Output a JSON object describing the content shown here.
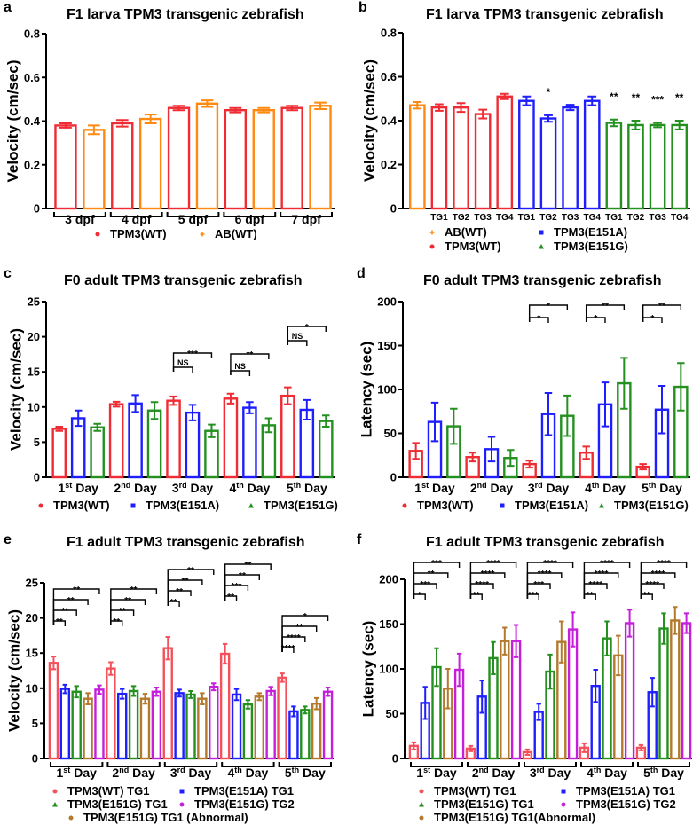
{
  "colors": {
    "wt_red": "#ef2b33",
    "wt_light": "#f4515a",
    "ab_orange": "#ff8a12",
    "e151a_blue": "#1e1eff",
    "e151g_green": "#23901f",
    "tg2_magenta": "#c61fdc",
    "abn_brown": "#b3792d"
  },
  "chart_data": [
    {
      "id": "a",
      "letter": "a",
      "type": "bar",
      "title": "F1 larva TPM3 transgenic zebrafish",
      "ylabel": "Velocity (cm/sec)",
      "xlabel": "",
      "ylim": [
        0,
        0.8
      ],
      "yticks": [
        "0",
        "0.2",
        "0.4",
        "0.6",
        "0.8"
      ],
      "ytick_values": [
        0,
        0.2,
        0.4,
        0.6,
        0.8
      ],
      "categories": [
        "3 dpf",
        "4 dpf",
        "5 dpf",
        "6 dpf",
        "7 dpf"
      ],
      "series": [
        {
          "name": "TPM3(WT)",
          "color": "#ef2b33",
          "marker": "circle",
          "values": [
            0.38,
            0.39,
            0.46,
            0.45,
            0.46
          ],
          "sem": [
            0.01,
            0.015,
            0.01,
            0.01,
            0.01
          ]
        },
        {
          "name": "AB(WT)",
          "color": "#ff8a12",
          "marker": "plus",
          "values": [
            0.36,
            0.41,
            0.48,
            0.45,
            0.47
          ],
          "sem": [
            0.02,
            0.02,
            0.015,
            0.01,
            0.015
          ]
        }
      ],
      "brackets": [],
      "annotations": []
    },
    {
      "id": "b",
      "letter": "b",
      "type": "bar",
      "title": "F1 larva TPM3 transgenic zebrafish",
      "ylabel": "Velocity (cm/sec)",
      "xlabel": "",
      "ylim": [
        0,
        0.8
      ],
      "yticks": [
        "0",
        "0.2",
        "0.4",
        "0.6",
        "0.8"
      ],
      "ytick_values": [
        0,
        0.2,
        0.4,
        0.6,
        0.8
      ],
      "categories": [
        "",
        "TG1",
        "TG2",
        "TG3",
        "TG4",
        "TG1",
        "TG2",
        "TG3",
        "TG4",
        "TG1",
        "TG2",
        "TG3",
        "TG4"
      ],
      "series": [
        {
          "name": "AB(WT)",
          "color": "#ff8a12",
          "marker": "plus",
          "values": [
            0.47,
            null,
            null,
            null,
            null,
            null,
            null,
            null,
            null,
            null,
            null,
            null,
            null
          ],
          "sem": [
            0.015
          ]
        },
        {
          "name": "TPM3(WT)",
          "color": "#ef2b33",
          "marker": "circle",
          "values": [
            null,
            0.46,
            0.46,
            0.43,
            0.51,
            null,
            null,
            null,
            null,
            null,
            null,
            null,
            null
          ],
          "sem": [
            null,
            0.015,
            0.02,
            0.02,
            0.012
          ]
        },
        {
          "name": "TPM3(E151A)",
          "color": "#1e1eff",
          "marker": "square",
          "values": [
            null,
            null,
            null,
            null,
            null,
            0.49,
            0.41,
            0.46,
            0.49,
            null,
            null,
            null,
            null
          ],
          "sem": [
            null,
            null,
            null,
            null,
            null,
            0.02,
            0.015,
            0.012,
            0.02
          ]
        },
        {
          "name": "TPM3(E151G)",
          "color": "#23901f",
          "marker": "triangle",
          "values": [
            null,
            null,
            null,
            null,
            null,
            null,
            null,
            null,
            null,
            0.39,
            0.38,
            0.38,
            0.38
          ],
          "sem": [
            null,
            null,
            null,
            null,
            null,
            null,
            null,
            null,
            null,
            0.015,
            0.02,
            0.01,
            0.02
          ]
        }
      ],
      "annotations": [
        {
          "category": 6,
          "label": "*"
        },
        {
          "category": 9,
          "label": "**"
        },
        {
          "category": 10,
          "label": "**"
        },
        {
          "category": 11,
          "label": "***"
        },
        {
          "category": 12,
          "label": "**"
        }
      ],
      "brackets": []
    },
    {
      "id": "c",
      "letter": "c",
      "type": "bar",
      "title": "F0 adult TPM3 transgenic zebrafish",
      "ylabel": "Velocity (cm/sec)",
      "xlabel": "",
      "ylim": [
        0,
        25
      ],
      "yticks": [
        "0",
        "5",
        "10",
        "15",
        "20",
        "25"
      ],
      "ytick_values": [
        0,
        5,
        10,
        15,
        20,
        25
      ],
      "categories": [
        "1st Day",
        "2nd Day",
        "3rd Day",
        "4th Day",
        "5th Day"
      ],
      "series": [
        {
          "name": "TPM3(WT)",
          "color": "#ef2b33",
          "marker": "circle",
          "values": [
            6.9,
            10.4,
            10.9,
            11.2,
            11.6
          ],
          "sem": [
            0.3,
            0.35,
            0.6,
            0.7,
            1.2
          ]
        },
        {
          "name": "TPM3(E151A)",
          "color": "#1e1eff",
          "marker": "square",
          "values": [
            8.4,
            10.5,
            9.2,
            9.9,
            9.6
          ],
          "sem": [
            1.1,
            1.2,
            1.1,
            0.8,
            1.4
          ]
        },
        {
          "name": "TPM3(E151G)",
          "color": "#23901f",
          "marker": "triangle",
          "values": [
            7.1,
            9.5,
            6.6,
            7.4,
            8.0
          ],
          "sem": [
            0.5,
            1.2,
            0.9,
            1.0,
            0.8
          ]
        }
      ],
      "brackets": [
        {
          "group": 2,
          "to": 1,
          "level": 0,
          "label": "NS"
        },
        {
          "group": 2,
          "to": 2,
          "level": 1,
          "label": "***"
        },
        {
          "group": 3,
          "to": 1,
          "level": 0,
          "label": "NS"
        },
        {
          "group": 3,
          "to": 2,
          "level": 1,
          "label": "**"
        },
        {
          "group": 4,
          "to": 1,
          "level": 0,
          "label": "NS"
        },
        {
          "group": 4,
          "to": 2,
          "level": 1,
          "label": "*"
        }
      ],
      "annotations": []
    },
    {
      "id": "d",
      "letter": "d",
      "type": "bar",
      "title": "F0 adult TPM3 transgenic zebrafish",
      "ylabel": "Latency (sec)",
      "xlabel": "",
      "ylim": [
        0,
        200
      ],
      "yticks": [
        "0",
        "50",
        "100",
        "150",
        "200"
      ],
      "ytick_values": [
        0,
        50,
        100,
        150,
        200
      ],
      "categories": [
        "1st Day",
        "2nd Day",
        "3rd Day",
        "4th Day",
        "5th Day"
      ],
      "series": [
        {
          "name": "TPM3(WT)",
          "color": "#ef2b33",
          "marker": "circle",
          "values": [
            30,
            23,
            15,
            28,
            12
          ],
          "sem": [
            9,
            5,
            4,
            7,
            3
          ]
        },
        {
          "name": "TPM3(E151A)",
          "color": "#1e1eff",
          "marker": "square",
          "values": [
            63,
            32,
            72,
            83,
            77
          ],
          "sem": [
            22,
            14,
            24,
            25,
            27
          ]
        },
        {
          "name": "TPM3(E151G)",
          "color": "#23901f",
          "marker": "triangle",
          "values": [
            58,
            22,
            70,
            107,
            103
          ],
          "sem": [
            20,
            9,
            23,
            29,
            27
          ]
        }
      ],
      "brackets": [
        {
          "group": 2,
          "to": 1,
          "level": 0,
          "label": "*"
        },
        {
          "group": 2,
          "to": 2,
          "level": 1,
          "label": "*"
        },
        {
          "group": 3,
          "to": 1,
          "level": 0,
          "label": "*"
        },
        {
          "group": 3,
          "to": 2,
          "level": 1,
          "label": "**"
        },
        {
          "group": 4,
          "to": 1,
          "level": 0,
          "label": "*"
        },
        {
          "group": 4,
          "to": 2,
          "level": 1,
          "label": "**"
        }
      ],
      "annotations": []
    },
    {
      "id": "e",
      "letter": "e",
      "type": "bar",
      "title": "F1 adult TPM3 transgenic zebrafish",
      "ylabel": "Velocity (cm/sec)",
      "xlabel": "",
      "ylim": [
        0,
        25
      ],
      "yticks": [
        "0",
        "5",
        "10",
        "15",
        "20",
        "25"
      ],
      "ytick_values": [
        0,
        5,
        10,
        15,
        20,
        25
      ],
      "categories": [
        "1st Day",
        "2nd Day",
        "3rd Day",
        "4th Day",
        "5th Day"
      ],
      "series": [
        {
          "name": "TPM3(WT) TG1",
          "color": "#f4515a",
          "marker": "circle",
          "values": [
            13.6,
            12.8,
            15.7,
            14.9,
            11.5
          ],
          "sem": [
            0.9,
            0.9,
            1.6,
            1.4,
            0.6
          ]
        },
        {
          "name": "TPM3(E151A) TG1",
          "color": "#1e1eff",
          "marker": "square",
          "values": [
            9.9,
            9.2,
            9.3,
            9.1,
            6.7
          ],
          "sem": [
            0.6,
            0.7,
            0.5,
            0.8,
            0.7
          ]
        },
        {
          "name": "TPM3(E151G) TG1",
          "color": "#23901f",
          "marker": "triangle",
          "values": [
            9.5,
            9.6,
            9.1,
            7.7,
            6.9
          ],
          "sem": [
            0.8,
            0.7,
            0.5,
            0.6,
            0.5
          ]
        },
        {
          "name": "TPM3(E151G) TG1 (Abnormal)",
          "color": "#b3792d",
          "marker": "circle",
          "values": [
            8.5,
            8.5,
            8.5,
            8.8,
            7.8
          ],
          "sem": [
            0.8,
            0.7,
            0.8,
            0.5,
            0.8
          ]
        },
        {
          "name": "TPM3(E151G) TG2",
          "color": "#c61fdc",
          "marker": "circle",
          "values": [
            9.8,
            9.5,
            10.2,
            9.6,
            9.5
          ],
          "sem": [
            0.6,
            0.6,
            0.5,
            0.6,
            0.6
          ]
        }
      ],
      "legend_order": [
        0,
        1,
        2,
        4,
        3
      ],
      "brackets": [
        {
          "group": 0,
          "to": 1,
          "level": 0,
          "label": "**"
        },
        {
          "group": 0,
          "to": 2,
          "level": 1,
          "label": "**"
        },
        {
          "group": 0,
          "to": 3,
          "level": 2,
          "label": "**"
        },
        {
          "group": 0,
          "to": 4,
          "level": 3,
          "label": "**"
        },
        {
          "group": 1,
          "to": 1,
          "level": 0,
          "label": "**"
        },
        {
          "group": 1,
          "to": 2,
          "level": 1,
          "label": "**"
        },
        {
          "group": 1,
          "to": 3,
          "level": 2,
          "label": "**"
        },
        {
          "group": 1,
          "to": 4,
          "level": 3,
          "label": "**"
        },
        {
          "group": 2,
          "to": 1,
          "level": 0,
          "label": "**"
        },
        {
          "group": 2,
          "to": 2,
          "level": 1,
          "label": "**"
        },
        {
          "group": 2,
          "to": 3,
          "level": 2,
          "label": "**"
        },
        {
          "group": 2,
          "to": 4,
          "level": 3,
          "label": "**"
        },
        {
          "group": 3,
          "to": 1,
          "level": 0,
          "label": "**"
        },
        {
          "group": 3,
          "to": 2,
          "level": 1,
          "label": "***"
        },
        {
          "group": 3,
          "to": 3,
          "level": 2,
          "label": "**"
        },
        {
          "group": 3,
          "to": 4,
          "level": 3,
          "label": "**"
        },
        {
          "group": 4,
          "to": 1,
          "level": 0,
          "label": "****"
        },
        {
          "group": 4,
          "to": 2,
          "level": 1,
          "label": "****"
        },
        {
          "group": 4,
          "to": 3,
          "level": 2,
          "label": "**"
        },
        {
          "group": 4,
          "to": 4,
          "level": 3,
          "label": "*"
        }
      ],
      "annotations": []
    },
    {
      "id": "f",
      "letter": "f",
      "type": "bar",
      "title": "F1 adult TPM3 transgenic zebrafish",
      "ylabel": "Latency (sec)",
      "xlabel": "",
      "ylim": [
        0,
        200
      ],
      "yticks": [
        "0",
        "50",
        "100",
        "150",
        "200"
      ],
      "ytick_values": [
        0,
        50,
        100,
        150,
        200
      ],
      "categories": [
        "1st Day",
        "2nd Day",
        "3rd Day",
        "4th Day",
        "5th Day"
      ],
      "series": [
        {
          "name": "TPM3(WT) TG1",
          "color": "#f4515a",
          "marker": "circle",
          "values": [
            14,
            11,
            7,
            12,
            12
          ],
          "sem": [
            4,
            3,
            3,
            5,
            3
          ]
        },
        {
          "name": "TPM3(E151A) TG1",
          "color": "#1e1eff",
          "marker": "square",
          "values": [
            62,
            69,
            52,
            81,
            74
          ],
          "sem": [
            18,
            18,
            9,
            18,
            16
          ]
        },
        {
          "name": "TPM3(E151G) TG1",
          "color": "#23901f",
          "marker": "triangle",
          "values": [
            102,
            112,
            97,
            134,
            145
          ],
          "sem": [
            21,
            18,
            19,
            19,
            17
          ]
        },
        {
          "name": "TPM3(E151G) TG1(Abnormal)",
          "color": "#b3792d",
          "marker": "circle",
          "values": [
            78,
            131,
            130,
            115,
            154
          ],
          "sem": [
            22,
            15,
            23,
            22,
            15
          ]
        },
        {
          "name": "TPM3(E151G) TG2",
          "color": "#c61fdc",
          "marker": "circle",
          "values": [
            99,
            131,
            144,
            151,
            151
          ],
          "sem": [
            18,
            18,
            19,
            15,
            11
          ]
        }
      ],
      "legend_order": [
        0,
        1,
        2,
        4,
        3
      ],
      "brackets": [
        {
          "group": 0,
          "to": 1,
          "level": 0,
          "label": "*"
        },
        {
          "group": 0,
          "to": 2,
          "level": 1,
          "label": "***"
        },
        {
          "group": 0,
          "to": 3,
          "level": 2,
          "label": "**"
        },
        {
          "group": 0,
          "to": 4,
          "level": 3,
          "label": "***"
        },
        {
          "group": 1,
          "to": 1,
          "level": 0,
          "label": "**"
        },
        {
          "group": 1,
          "to": 2,
          "level": 1,
          "label": "****"
        },
        {
          "group": 1,
          "to": 3,
          "level": 2,
          "label": "****"
        },
        {
          "group": 1,
          "to": 4,
          "level": 3,
          "label": "****"
        },
        {
          "group": 2,
          "to": 1,
          "level": 0,
          "label": "***"
        },
        {
          "group": 2,
          "to": 2,
          "level": 1,
          "label": "***"
        },
        {
          "group": 2,
          "to": 3,
          "level": 2,
          "label": "****"
        },
        {
          "group": 2,
          "to": 4,
          "level": 3,
          "label": "****"
        },
        {
          "group": 3,
          "to": 1,
          "level": 0,
          "label": "**"
        },
        {
          "group": 3,
          "to": 2,
          "level": 1,
          "label": "****"
        },
        {
          "group": 3,
          "to": 3,
          "level": 2,
          "label": "****"
        },
        {
          "group": 3,
          "to": 4,
          "level": 3,
          "label": "****"
        },
        {
          "group": 4,
          "to": 1,
          "level": 0,
          "label": "**"
        },
        {
          "group": 4,
          "to": 2,
          "level": 1,
          "label": "****"
        },
        {
          "group": 4,
          "to": 3,
          "level": 2,
          "label": "****"
        },
        {
          "group": 4,
          "to": 4,
          "level": 3,
          "label": "****"
        }
      ],
      "annotations": []
    }
  ]
}
